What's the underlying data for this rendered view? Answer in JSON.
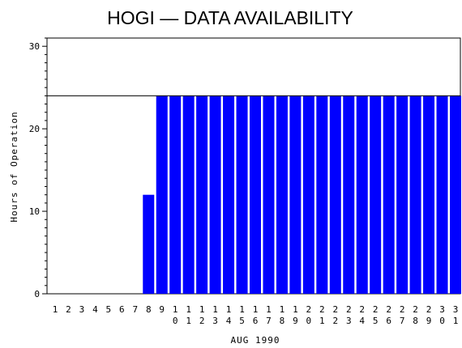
{
  "chart_data": {
    "type": "bar",
    "title": "HOGI — DATA AVAILABILITY",
    "xlabel": "AUG 1990",
    "ylabel": "Hours of Operation",
    "ylim": [
      0,
      31
    ],
    "yticks": [
      0,
      10,
      20,
      30
    ],
    "reference_line": 24,
    "bar_color": "#0000ff",
    "categories": [
      "1",
      "2",
      "3",
      "4",
      "5",
      "6",
      "7",
      "8",
      "9",
      "10",
      "11",
      "12",
      "13",
      "14",
      "15",
      "16",
      "17",
      "18",
      "19",
      "20",
      "21",
      "22",
      "23",
      "24",
      "25",
      "26",
      "27",
      "28",
      "29",
      "30",
      "31"
    ],
    "values": [
      0,
      0,
      0,
      0,
      0,
      0,
      0,
      12,
      24,
      24,
      24,
      24,
      24,
      24,
      24,
      24,
      24,
      24,
      24,
      24,
      24,
      24,
      24,
      24,
      24,
      24,
      24,
      24,
      24,
      24,
      24
    ]
  }
}
